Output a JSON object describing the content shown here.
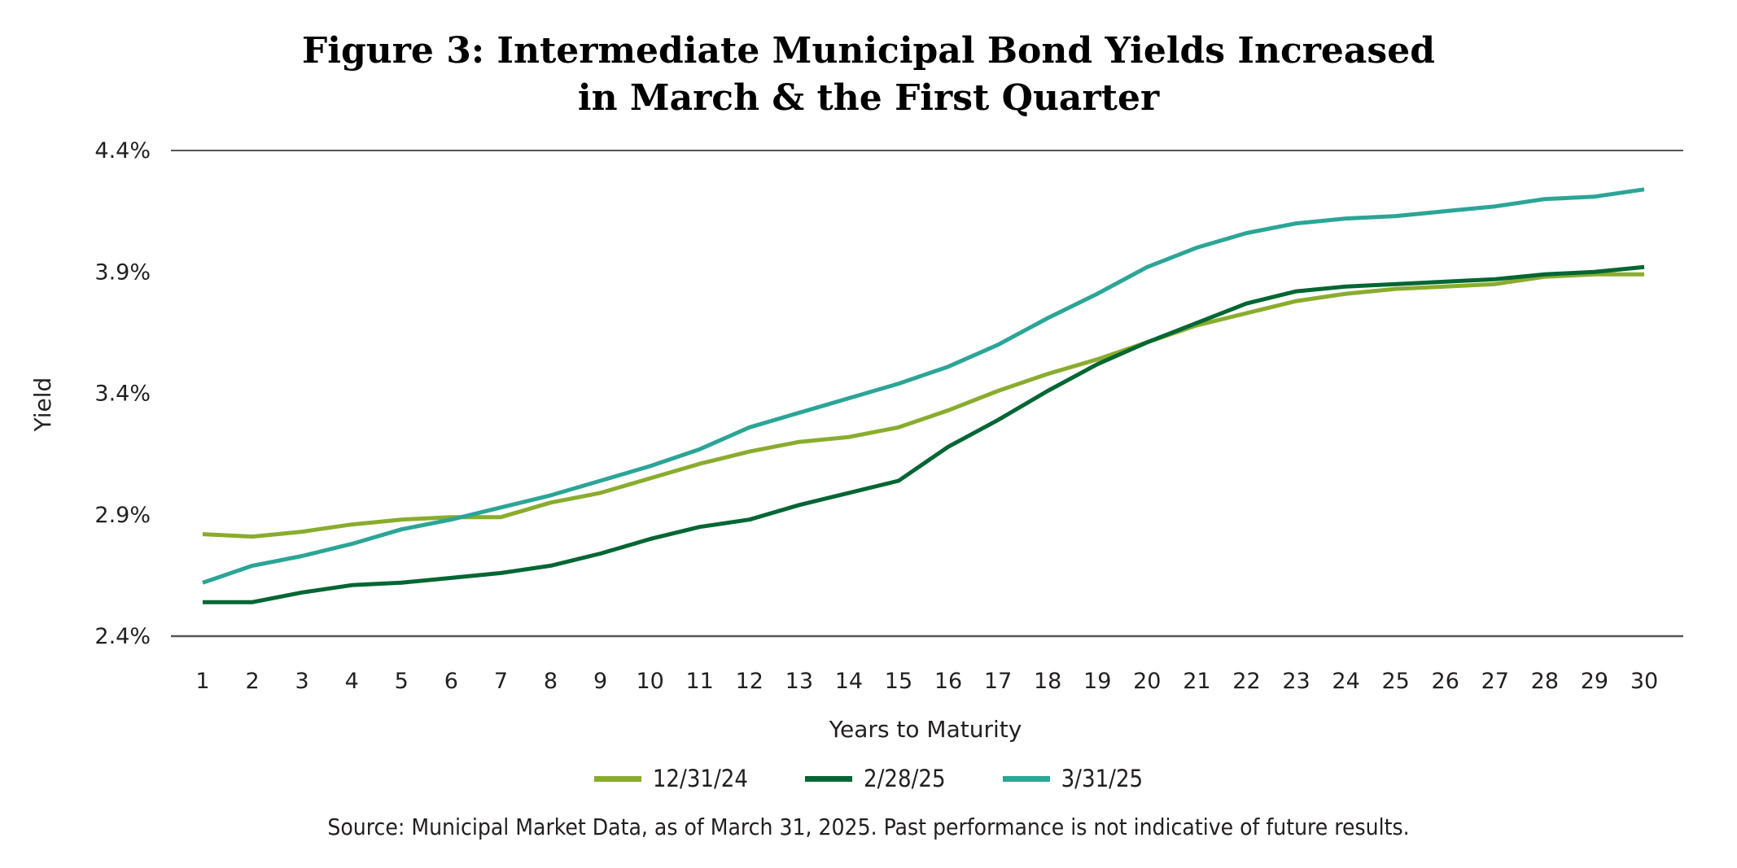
{
  "chart_data": {
    "type": "line",
    "title_lines": [
      "Figure 3: Intermediate Municipal Bond Yields Increased",
      "in March & the First Quarter"
    ],
    "xlabel": "Years to Maturity",
    "ylabel": "Yield",
    "x": [
      1,
      2,
      3,
      4,
      5,
      6,
      7,
      8,
      9,
      10,
      11,
      12,
      13,
      14,
      15,
      16,
      17,
      18,
      19,
      20,
      21,
      22,
      23,
      24,
      25,
      26,
      27,
      28,
      29,
      30
    ],
    "ylim": [
      2.4,
      4.4
    ],
    "yticks": [
      2.4,
      2.9,
      3.4,
      3.9,
      4.4
    ],
    "ytick_labels": [
      "2.4%",
      "2.9%",
      "3.4%",
      "3.9%",
      "4.4%"
    ],
    "grid": "top and bottom lines only",
    "legend_position": "bottom",
    "series": [
      {
        "name": "12/31/24",
        "color": "#8aac2e",
        "values": [
          2.82,
          2.81,
          2.83,
          2.86,
          2.88,
          2.89,
          2.89,
          2.95,
          2.99,
          3.05,
          3.11,
          3.16,
          3.2,
          3.22,
          3.26,
          3.33,
          3.41,
          3.48,
          3.54,
          3.61,
          3.68,
          3.73,
          3.78,
          3.81,
          3.83,
          3.84,
          3.85,
          3.88,
          3.89,
          3.89
        ]
      },
      {
        "name": "2/28/25",
        "color": "#006633",
        "values": [
          2.54,
          2.54,
          2.58,
          2.61,
          2.62,
          2.64,
          2.66,
          2.69,
          2.74,
          2.8,
          2.85,
          2.88,
          2.94,
          2.99,
          3.04,
          3.18,
          3.29,
          3.41,
          3.52,
          3.61,
          3.69,
          3.77,
          3.82,
          3.84,
          3.85,
          3.86,
          3.87,
          3.89,
          3.9,
          3.92
        ]
      },
      {
        "name": "3/31/25",
        "color": "#2ba596",
        "values": [
          2.62,
          2.69,
          2.73,
          2.78,
          2.84,
          2.88,
          2.93,
          2.98,
          3.04,
          3.1,
          3.17,
          3.26,
          3.32,
          3.38,
          3.44,
          3.51,
          3.6,
          3.71,
          3.81,
          3.92,
          4.0,
          4.06,
          4.1,
          4.12,
          4.13,
          4.15,
          4.17,
          4.2,
          4.21,
          4.24
        ]
      }
    ],
    "source": "Source: Municipal Market Data, as of March 31, 2025. Past performance is not indicative of future results."
  }
}
